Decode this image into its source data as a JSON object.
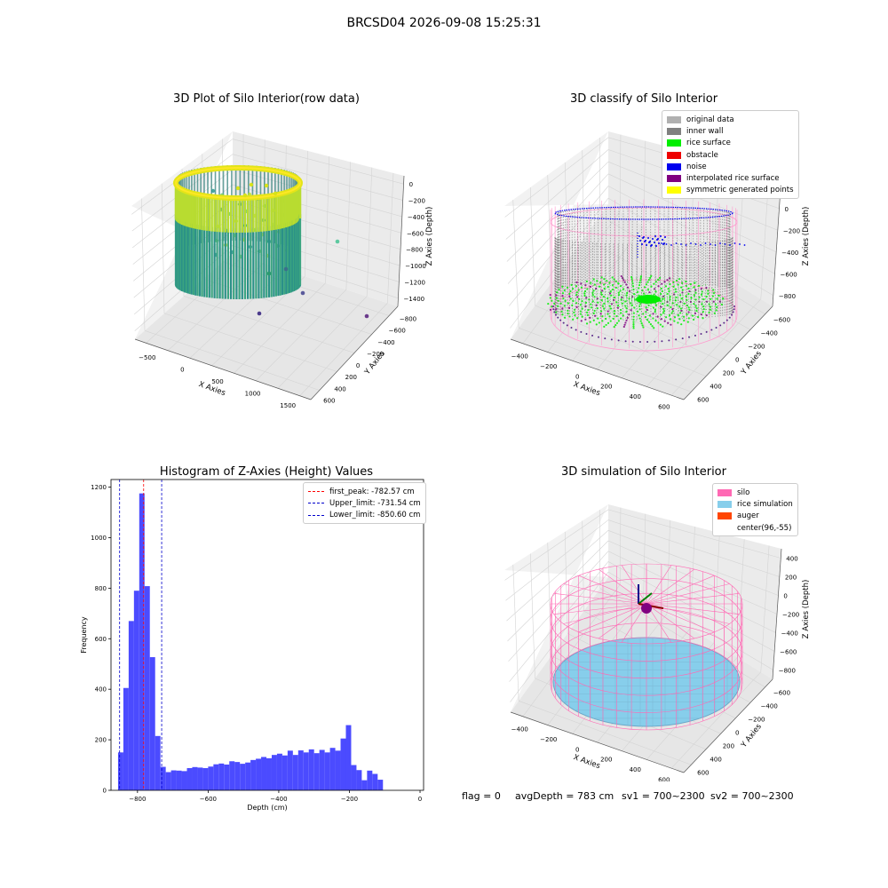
{
  "suptitle": "BRCSD04 2026-09-08 15:25:31",
  "chart_data": [
    {
      "type": "scatter",
      "title": "3D Plot of Silo Interior(row data)",
      "xlabel": "X Axies",
      "ylabel": "Y Axies",
      "zlabel": "Z Axies (Depth)",
      "xticks": [
        "−500",
        "0",
        "500",
        "1000",
        "1500"
      ],
      "yticks": [
        "−800",
        "−600",
        "−400",
        "−200",
        "0",
        "200",
        "400",
        "600"
      ],
      "zticks": [
        "0",
        "−200",
        "−400",
        "−600",
        "−800",
        "−1000",
        "−1200",
        "−1400"
      ],
      "colormap": "viridis"
    },
    {
      "type": "scatter",
      "title": "3D classify of Silo Interior",
      "xlabel": "X Axies",
      "ylabel": "Y Axies",
      "zlabel": "Z Axies (Depth)",
      "xticks": [
        "−400",
        "−200",
        "0",
        "200",
        "400",
        "600"
      ],
      "yticks": [
        "−600",
        "−400",
        "−200",
        "0",
        "200",
        "400",
        "600"
      ],
      "zticks": [
        "200",
        "0",
        "−200",
        "−400",
        "−600",
        "−800"
      ],
      "legend": [
        {
          "label": "original data",
          "color": "#b0b0b0"
        },
        {
          "label": "inner wall",
          "color": "#808080"
        },
        {
          "label": "rice surface",
          "color": "#00ee00"
        },
        {
          "label": "obstacle",
          "color": "#ee0000"
        },
        {
          "label": "noise",
          "color": "#0000ee"
        },
        {
          "label": "interpolated rice surface",
          "color": "#800080"
        },
        {
          "label": "symmetric generated points",
          "color": "#ffff00"
        }
      ]
    },
    {
      "type": "bar",
      "title": "Histogram of Z-Axies (Height) Values",
      "xlabel": "Depth (cm)",
      "ylabel": "Frequency",
      "xlim": [
        -875,
        10
      ],
      "ylim": [
        0,
        1230
      ],
      "xticks": [
        -800,
        -600,
        -400,
        -200,
        0
      ],
      "xtick_labels": [
        "−800",
        "−600",
        "−400",
        "−200",
        "0"
      ],
      "yticks": [
        0,
        200,
        400,
        600,
        800,
        1000,
        1200
      ],
      "bin_width": 15,
      "bin_start": -855,
      "values": [
        150,
        405,
        670,
        790,
        1175,
        808,
        527,
        215,
        93,
        72,
        79,
        78,
        76,
        88,
        92,
        90,
        88,
        94,
        103,
        106,
        102,
        115,
        112,
        105,
        110,
        120,
        125,
        132,
        127,
        140,
        145,
        138,
        157,
        140,
        158,
        150,
        162,
        147,
        160,
        150,
        168,
        157,
        205,
        258,
        100,
        80,
        40,
        78,
        65,
        42
      ],
      "bar_color": "#4b4bff",
      "vlines": [
        {
          "x": -782.57,
          "color": "#ff0000",
          "label": "first_peak: -782.57 cm"
        },
        {
          "x": -731.54,
          "color": "#0000cc",
          "label": "Upper_limit: -731.54 cm"
        },
        {
          "x": -850.6,
          "color": "#0000cc",
          "label": "Lower_limit: -850.60 cm"
        }
      ],
      "legend_position": "upper right"
    },
    {
      "type": "scatter",
      "title": "3D simulation of Silo Interior",
      "xlabel": "X Axies",
      "ylabel": "Y Axies",
      "zlabel": "Z Axies (Depth)",
      "xticks": [
        "−400",
        "−200",
        "0",
        "200",
        "400",
        "600"
      ],
      "yticks": [
        "−600",
        "−400",
        "−200",
        "0",
        "200",
        "400",
        "600"
      ],
      "zticks": [
        "400",
        "200",
        "0",
        "−200",
        "−400",
        "−600",
        "−800"
      ],
      "legend": [
        {
          "label": "silo",
          "color": "#ff69b4"
        },
        {
          "label": "rice simulation",
          "color": "#87ceeb"
        },
        {
          "label": "auger",
          "color": "#ff4500"
        },
        {
          "label": "center(96,-55)",
          "color": "#ffffff"
        }
      ]
    }
  ],
  "footer": {
    "flag": "flag = 0",
    "avg_depth": "avgDepth = 783 cm",
    "sv1": "sv1 = 700~2300",
    "sv2": "sv2 = 700~2300"
  }
}
